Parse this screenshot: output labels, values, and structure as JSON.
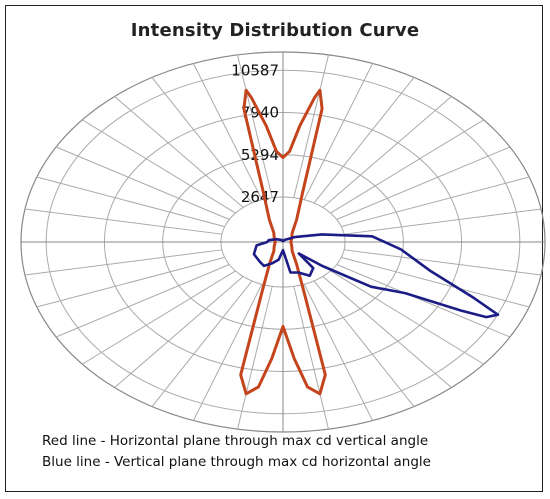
{
  "chart_data": {
    "type": "polar",
    "title": "Intensity Distribution Curve",
    "radial_ticks": [
      2647,
      5294,
      7940,
      10587
    ],
    "radial_max": 10587,
    "angular_step_deg": 10,
    "grid": true,
    "series": [
      {
        "color": "#c4441c",
        "angles_deg": [
          0,
          3,
          6,
          9,
          10,
          12,
          16,
          24,
          36,
          60,
          90,
          120,
          144,
          156,
          163,
          167,
          170,
          173,
          176,
          179,
          180,
          181,
          184,
          187,
          190,
          193,
          197,
          204,
          216,
          240,
          270,
          300,
          324,
          336,
          344,
          348,
          350,
          351,
          354,
          357
        ],
        "values": [
          5200,
          5600,
          7200,
          9000,
          9500,
          8400,
          3200,
          1500,
          700,
          450,
          350,
          450,
          700,
          1500,
          3200,
          8400,
          9500,
          9000,
          7200,
          5600,
          5200,
          5600,
          7200,
          9000,
          9500,
          8400,
          3200,
          1500,
          700,
          450,
          350,
          450,
          700,
          1500,
          3200,
          8400,
          9500,
          9000,
          7200,
          5600
        ]
      },
      {
        "color": "#1c1c86",
        "angles_deg": [
          0,
          30,
          60,
          75,
          85,
          95,
          105,
          112,
          115,
          117,
          118,
          120,
          125,
          130,
          135,
          140,
          150,
          160,
          170,
          180,
          190,
          200,
          210,
          220,
          240,
          260,
          270,
          280,
          300,
          330,
          350
        ],
        "values": [
          60,
          150,
          600,
          1800,
          4000,
          5300,
          6800,
          9200,
          10600,
          10200,
          9000,
          6300,
          4800,
          2300,
          1000,
          2100,
          2400,
          2000,
          1900,
          500,
          1100,
          1400,
          1700,
          1600,
          1500,
          1200,
          700,
          650,
          350,
          150,
          80
        ]
      }
    ]
  },
  "legend": {
    "red": "Red line - Horizontal plane through max cd vertical angle",
    "blue": "Blue line - Vertical plane through max cd horizontal angle"
  }
}
